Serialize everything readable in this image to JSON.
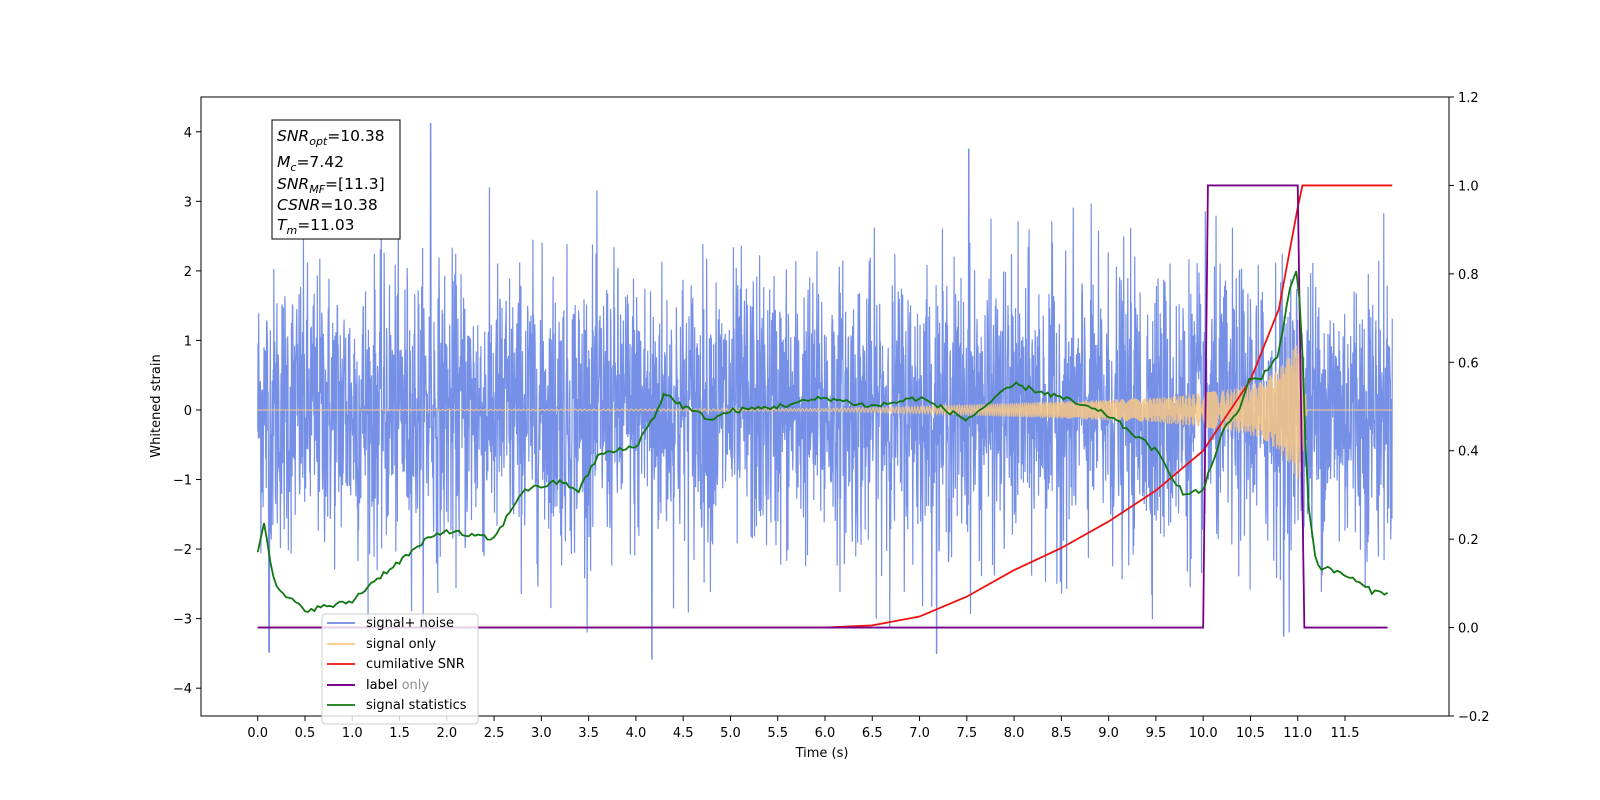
{
  "chart_data": {
    "type": "line",
    "xlabel": "Time (s)",
    "ylabel": "Whitened strain",
    "xlim": [
      -0.6,
      12.6
    ],
    "ylim": [
      -4.4,
      4.5
    ],
    "y2lim": [
      -0.2,
      1.2
    ],
    "xticks": [
      "0.0",
      "0.5",
      "1.0",
      "1.5",
      "2.0",
      "2.5",
      "3.0",
      "3.5",
      "4.0",
      "4.5",
      "5.0",
      "5.5",
      "6.0",
      "6.5",
      "7.0",
      "7.5",
      "8.0",
      "8.5",
      "9.0",
      "9.5",
      "10.0",
      "10.5",
      "11.0",
      "11.5"
    ],
    "xtick_values": [
      0.0,
      0.5,
      1.0,
      1.5,
      2.0,
      2.5,
      3.0,
      3.5,
      4.0,
      4.5,
      5.0,
      5.5,
      6.0,
      6.5,
      7.0,
      7.5,
      8.0,
      8.5,
      9.0,
      9.5,
      10.0,
      10.5,
      11.0,
      11.5
    ],
    "yticks": [
      "4",
      "3",
      "2",
      "1",
      "0",
      "−1",
      "−2",
      "−3",
      "−4"
    ],
    "ytick_values": [
      4,
      3,
      2,
      1,
      0,
      -1,
      -2,
      -3,
      -4
    ],
    "y2ticks": [
      "1.2",
      "1.0",
      "0.8",
      "0.6",
      "0.4",
      "0.2",
      "0.0",
      "−0.2"
    ],
    "y2tick_values": [
      1.2,
      1.0,
      0.8,
      0.6,
      0.4,
      0.2,
      0.0,
      -0.2
    ],
    "legend_placement": "lower-left",
    "legend": [
      {
        "name": "signal+ noise",
        "color": "#6f8ae6"
      },
      {
        "name": "signal only",
        "color": "#f8c884"
      },
      {
        "name": "cumilative SNR",
        "color": "#ee1111"
      },
      {
        "name": "label",
        "color": "#770088"
      },
      {
        "name": "label only",
        "color": "#770088"
      },
      {
        "name": "signal statistics",
        "color": "#117711"
      }
    ],
    "annotation": {
      "snr_opt": "=10.38",
      "mc": "=7.42",
      "snr_mf": "=[11.3]",
      "csnr": "=10.38",
      "tm": "=11.03"
    },
    "series": [
      {
        "name": "signal+ noise",
        "axis": "left",
        "color": "#6f8ae6",
        "x_range": [
          0.0,
          12.0
        ],
        "typical_band": [
          -2.0,
          2.0
        ],
        "extremes": [
          [
            1.83,
            4.12
          ],
          [
            7.52,
            3.75
          ],
          [
            0.12,
            -3.48
          ],
          [
            4.17,
            -3.58
          ],
          [
            7.18,
            -3.5
          ],
          [
            10.85,
            -3.25
          ]
        ]
      },
      {
        "name": "signal only",
        "axis": "left",
        "color": "#f8c884",
        "envelope_x": [
          0.0,
          6.0,
          7.0,
          8.0,
          9.0,
          9.5,
          10.0,
          10.3,
          10.6,
          10.8,
          10.9,
          11.0,
          11.03,
          11.1,
          12.0
        ],
        "envelope_amp": [
          0.0,
          0.02,
          0.05,
          0.1,
          0.15,
          0.18,
          0.25,
          0.3,
          0.4,
          0.6,
          0.8,
          1.0,
          1.0,
          0.0,
          0.0
        ]
      },
      {
        "name": "cumilative SNR",
        "axis": "right",
        "color": "#ee1111",
        "x": [
          0.0,
          6.0,
          6.5,
          7.0,
          7.5,
          8.0,
          8.5,
          9.0,
          9.5,
          10.0,
          10.5,
          10.8,
          11.0,
          11.05,
          12.0
        ],
        "y": [
          0.0,
          0.0,
          0.005,
          0.025,
          0.07,
          0.13,
          0.18,
          0.24,
          0.31,
          0.4,
          0.56,
          0.72,
          0.95,
          1.0,
          1.0
        ]
      },
      {
        "name": "label",
        "axis": "right",
        "color": "#770088",
        "x": [
          0.0,
          10.0,
          10.05,
          11.0,
          11.07,
          11.95
        ],
        "y": [
          0.0,
          0.0,
          1.0,
          1.0,
          0.0,
          0.0
        ]
      },
      {
        "name": "signal statistics",
        "axis": "right",
        "color": "#117711",
        "x": [
          0.0,
          0.07,
          0.15,
          0.2,
          0.3,
          0.5,
          0.8,
          1.0,
          1.2,
          1.5,
          1.8,
          2.0,
          2.2,
          2.5,
          2.8,
          3.0,
          3.2,
          3.4,
          3.6,
          3.8,
          4.0,
          4.2,
          4.3,
          4.5,
          4.8,
          5.0,
          5.5,
          6.0,
          6.5,
          7.0,
          7.5,
          8.0,
          8.5,
          9.0,
          9.5,
          9.8,
          10.0,
          10.2,
          10.4,
          10.5,
          10.6,
          10.8,
          10.9,
          11.0,
          11.05,
          11.1,
          11.2,
          11.5,
          11.8,
          11.95
        ],
        "y": [
          0.175,
          0.245,
          0.12,
          0.09,
          0.07,
          0.04,
          0.05,
          0.06,
          0.1,
          0.15,
          0.2,
          0.22,
          0.21,
          0.2,
          0.31,
          0.32,
          0.33,
          0.31,
          0.39,
          0.4,
          0.41,
          0.48,
          0.53,
          0.5,
          0.47,
          0.49,
          0.5,
          0.52,
          0.5,
          0.52,
          0.47,
          0.55,
          0.52,
          0.48,
          0.4,
          0.3,
          0.31,
          0.44,
          0.5,
          0.57,
          0.56,
          0.62,
          0.75,
          0.82,
          0.62,
          0.3,
          0.14,
          0.12,
          0.08,
          0.08
        ]
      }
    ]
  }
}
